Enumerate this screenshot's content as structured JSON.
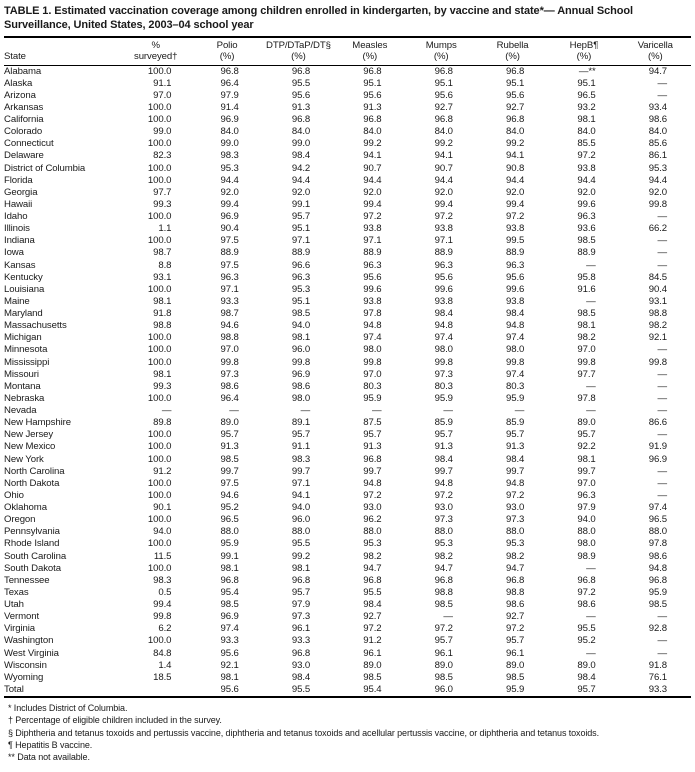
{
  "title": {
    "line1": "TABLE 1. Estimated vaccination coverage among children enrolled in kindergarten, by vaccine and state*— Annual School",
    "line2": "Surveillance, United States, 2003–04 school year"
  },
  "table": {
    "header": {
      "state": "State",
      "cols": [
        {
          "l1": "%",
          "l2": "surveyed†"
        },
        {
          "l1": "Polio",
          "l2": "(%)"
        },
        {
          "l1": "DTP/DTaP/DT§",
          "l2": "(%)"
        },
        {
          "l1": "Measles",
          "l2": "(%)"
        },
        {
          "l1": "Mumps",
          "l2": "(%)"
        },
        {
          "l1": "Rubella",
          "l2": "(%)"
        },
        {
          "l1": "HepB¶",
          "l2": "(%)"
        },
        {
          "l1": "Varicella",
          "l2": "(%)"
        }
      ]
    },
    "rows": [
      [
        "Alabama",
        "100.0",
        "96.8",
        "96.8",
        "96.8",
        "96.8",
        "96.8",
        "—**",
        "94.7"
      ],
      [
        "Alaska",
        "91.1",
        "96.4",
        "95.5",
        "95.1",
        "95.1",
        "95.1",
        "95.1",
        "—"
      ],
      [
        "Arizona",
        "97.0",
        "97.9",
        "95.6",
        "95.6",
        "95.6",
        "95.6",
        "96.5",
        "—"
      ],
      [
        "Arkansas",
        "100.0",
        "91.4",
        "91.3",
        "91.3",
        "92.7",
        "92.7",
        "93.2",
        "93.4"
      ],
      [
        "California",
        "100.0",
        "96.9",
        "96.8",
        "96.8",
        "96.8",
        "96.8",
        "98.1",
        "98.6"
      ],
      [
        "Colorado",
        "99.0",
        "84.0",
        "84.0",
        "84.0",
        "84.0",
        "84.0",
        "84.0",
        "84.0"
      ],
      [
        "Connecticut",
        "100.0",
        "99.0",
        "99.0",
        "99.2",
        "99.2",
        "99.2",
        "85.5",
        "85.6"
      ],
      [
        "Delaware",
        "82.3",
        "98.3",
        "98.4",
        "94.1",
        "94.1",
        "94.1",
        "97.2",
        "86.1"
      ],
      [
        "District of Columbia",
        "100.0",
        "95.3",
        "94.2",
        "90.7",
        "90.7",
        "90.8",
        "93.8",
        "95.3"
      ],
      [
        "Florida",
        "100.0",
        "94.4",
        "94.4",
        "94.4",
        "94.4",
        "94.4",
        "94.4",
        "94.4"
      ],
      [
        "Georgia",
        "97.7",
        "92.0",
        "92.0",
        "92.0",
        "92.0",
        "92.0",
        "92.0",
        "92.0"
      ],
      [
        "Hawaii",
        "99.3",
        "99.4",
        "99.1",
        "99.4",
        "99.4",
        "99.4",
        "99.6",
        "99.8"
      ],
      [
        "Idaho",
        "100.0",
        "96.9",
        "95.7",
        "97.2",
        "97.2",
        "97.2",
        "96.3",
        "—"
      ],
      [
        "Illinois",
        "1.1",
        "90.4",
        "95.1",
        "93.8",
        "93.8",
        "93.8",
        "93.6",
        "66.2"
      ],
      [
        "Indiana",
        "100.0",
        "97.5",
        "97.1",
        "97.1",
        "97.1",
        "99.5",
        "98.5",
        "—"
      ],
      [
        "Iowa",
        "98.7",
        "88.9",
        "88.9",
        "88.9",
        "88.9",
        "88.9",
        "88.9",
        "—"
      ],
      [
        "Kansas",
        "8.8",
        "97.5",
        "96.6",
        "96.3",
        "96.3",
        "96.3",
        "—",
        "—"
      ],
      [
        "Kentucky",
        "93.1",
        "96.3",
        "96.3",
        "95.6",
        "95.6",
        "95.6",
        "95.8",
        "84.5"
      ],
      [
        "Louisiana",
        "100.0",
        "97.1",
        "95.3",
        "99.6",
        "99.6",
        "99.6",
        "91.6",
        "90.4"
      ],
      [
        "Maine",
        "98.1",
        "93.3",
        "95.1",
        "93.8",
        "93.8",
        "93.8",
        "—",
        "93.1"
      ],
      [
        "Maryland",
        "91.8",
        "98.7",
        "98.5",
        "97.8",
        "98.4",
        "98.4",
        "98.5",
        "98.8"
      ],
      [
        "Massachusetts",
        "98.8",
        "94.6",
        "94.0",
        "94.8",
        "94.8",
        "94.8",
        "98.1",
        "98.2"
      ],
      [
        "Michigan",
        "100.0",
        "98.8",
        "98.1",
        "97.4",
        "97.4",
        "97.4",
        "98.2",
        "92.1"
      ],
      [
        "Minnesota",
        "100.0",
        "97.0",
        "96.0",
        "98.0",
        "98.0",
        "98.0",
        "97.0",
        "—"
      ],
      [
        "Mississippi",
        "100.0",
        "99.8",
        "99.8",
        "99.8",
        "99.8",
        "99.8",
        "99.8",
        "99.8"
      ],
      [
        "Missouri",
        "98.1",
        "97.3",
        "96.9",
        "97.0",
        "97.3",
        "97.4",
        "97.7",
        "—"
      ],
      [
        "Montana",
        "99.3",
        "98.6",
        "98.6",
        "80.3",
        "80.3",
        "80.3",
        "—",
        "—"
      ],
      [
        "Nebraska",
        "100.0",
        "96.4",
        "98.0",
        "95.9",
        "95.9",
        "95.9",
        "97.8",
        "—"
      ],
      [
        "Nevada",
        "—",
        "—",
        "—",
        "—",
        "—",
        "—",
        "—",
        "—"
      ],
      [
        "New Hampshire",
        "89.8",
        "89.0",
        "89.1",
        "87.5",
        "85.9",
        "85.9",
        "89.0",
        "86.6"
      ],
      [
        "New Jersey",
        "100.0",
        "95.7",
        "95.7",
        "95.7",
        "95.7",
        "95.7",
        "95.7",
        "—"
      ],
      [
        "New Mexico",
        "100.0",
        "91.3",
        "91.1",
        "91.3",
        "91.3",
        "91.3",
        "92.2",
        "91.9"
      ],
      [
        "New York",
        "100.0",
        "98.5",
        "98.3",
        "96.8",
        "98.4",
        "98.4",
        "98.1",
        "96.9"
      ],
      [
        "North Carolina",
        "91.2",
        "99.7",
        "99.7",
        "99.7",
        "99.7",
        "99.7",
        "99.7",
        "—"
      ],
      [
        "North Dakota",
        "100.0",
        "97.5",
        "97.1",
        "94.8",
        "94.8",
        "94.8",
        "97.0",
        "—"
      ],
      [
        "Ohio",
        "100.0",
        "94.6",
        "94.1",
        "97.2",
        "97.2",
        "97.2",
        "96.3",
        "—"
      ],
      [
        "Oklahoma",
        "90.1",
        "95.2",
        "94.0",
        "93.0",
        "93.0",
        "93.0",
        "97.9",
        "97.4"
      ],
      [
        "Oregon",
        "100.0",
        "96.5",
        "96.0",
        "96.2",
        "97.3",
        "97.3",
        "94.0",
        "96.5"
      ],
      [
        "Pennsylvania",
        "94.0",
        "88.0",
        "88.0",
        "88.0",
        "88.0",
        "88.0",
        "88.0",
        "88.0"
      ],
      [
        "Rhode Island",
        "100.0",
        "95.9",
        "95.5",
        "95.3",
        "95.3",
        "95.3",
        "98.0",
        "97.8"
      ],
      [
        "South Carolina",
        "11.5",
        "99.1",
        "99.2",
        "98.2",
        "98.2",
        "98.2",
        "98.9",
        "98.6"
      ],
      [
        "South Dakota",
        "100.0",
        "98.1",
        "98.1",
        "94.7",
        "94.7",
        "94.7",
        "—",
        "94.8"
      ],
      [
        "Tennessee",
        "98.3",
        "96.8",
        "96.8",
        "96.8",
        "96.8",
        "96.8",
        "96.8",
        "96.8"
      ],
      [
        "Texas",
        "0.5",
        "95.4",
        "95.7",
        "95.5",
        "98.8",
        "98.8",
        "97.2",
        "95.9"
      ],
      [
        "Utah",
        "99.4",
        "98.5",
        "97.9",
        "98.4",
        "98.5",
        "98.6",
        "98.6",
        "98.5"
      ],
      [
        "Vermont",
        "99.8",
        "96.9",
        "97.3",
        "92.7",
        "—",
        "92.7",
        "—",
        "—"
      ],
      [
        "Virginia",
        "6.2",
        "97.4",
        "96.1",
        "97.2",
        "97.2",
        "97.2",
        "95.5",
        "92.8"
      ],
      [
        "Washington",
        "100.0",
        "93.3",
        "93.3",
        "91.2",
        "95.7",
        "95.7",
        "95.2",
        "—"
      ],
      [
        "West Virginia",
        "84.8",
        "95.6",
        "96.8",
        "96.1",
        "96.1",
        "96.1",
        "—",
        "—"
      ],
      [
        "Wisconsin",
        "1.4",
        "92.1",
        "93.0",
        "89.0",
        "89.0",
        "89.0",
        "89.0",
        "91.8"
      ],
      [
        "Wyoming",
        "18.5",
        "98.1",
        "98.4",
        "98.5",
        "98.5",
        "98.5",
        "98.4",
        "76.1"
      ],
      [
        "Total",
        "",
        "95.6",
        "95.5",
        "95.4",
        "96.0",
        "95.9",
        "95.7",
        "93.3"
      ]
    ]
  },
  "footnotes": [
    "* Includes District of Columbia.",
    "† Percentage of eligible children included in the survey.",
    "§ Diphtheria and tetanus toxoids and pertussis vaccine, diphtheria and tetanus toxoids and acellular pertussis vaccine, or diphtheria and tetanus toxoids.",
    "¶ Hepatitis B vaccine.",
    "** Data not available."
  ]
}
